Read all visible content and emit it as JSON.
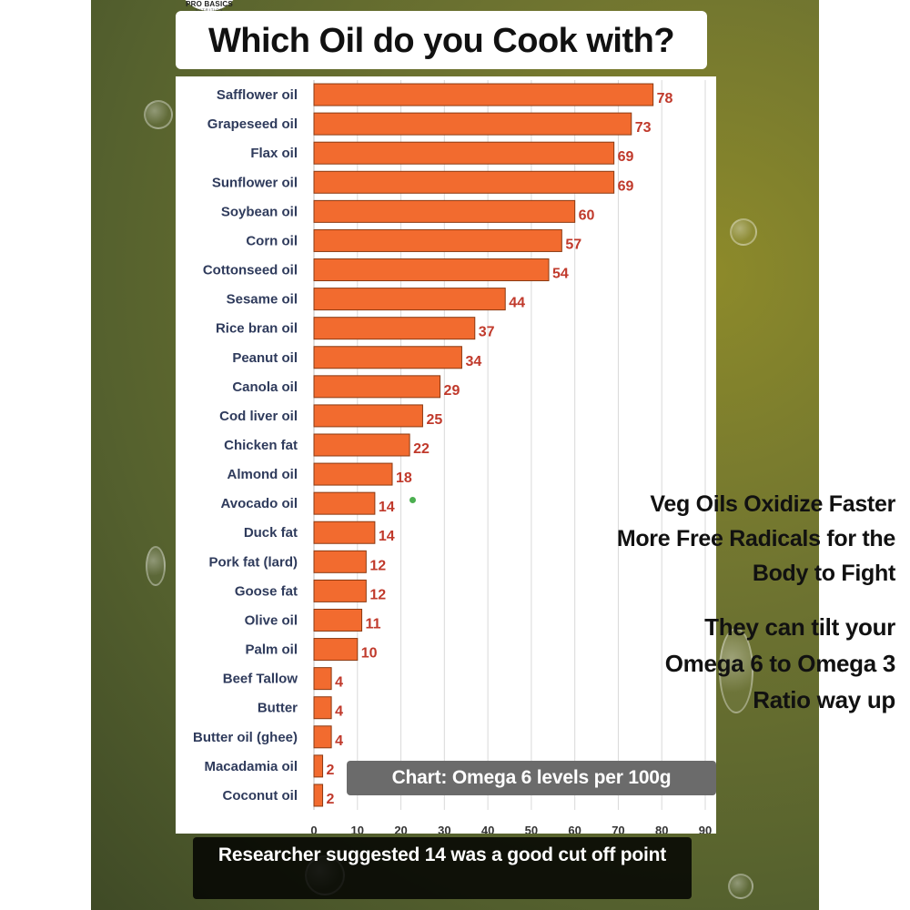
{
  "logo": {
    "main": "PRO BASICS",
    "sub": "NUTRITION"
  },
  "title": "Which Oil do you Cook with?",
  "annotations": {
    "oxidize": "Veg Oils Oxidize Faster More Free Radicals for the Body to Fight",
    "omega": "They can tilt your Omega 6 to Omega 3 Ratio way up",
    "chart_note": "Chart: Omega 6 levels per 100g"
  },
  "footer": "Researcher suggested 14 was a good cut off point",
  "colors": {
    "bar": "#f26b2f",
    "bar_outline": "#8a3a12",
    "value_text": "#c0392b",
    "category_text": "#2f3b5c",
    "grid": "#d9d9d9"
  },
  "chart_data": {
    "type": "bar",
    "orientation": "horizontal",
    "title": "",
    "xlabel": "",
    "ylabel": "",
    "categories": [
      "Safflower oil",
      "Grapeseed oil",
      "Flax oil",
      "Sunflower oil",
      "Soybean oil",
      "Corn oil",
      "Cottonseed oil",
      "Sesame oil",
      "Rice bran oil",
      "Peanut oil",
      "Canola oil",
      "Cod liver oil",
      "Chicken fat",
      "Almond oil",
      "Avocado oil",
      "Duck fat",
      "Pork fat (lard)",
      "Goose fat",
      "Olive oil",
      "Palm oil",
      "Beef Tallow",
      "Butter",
      "Butter oil (ghee)",
      "Macadamia oil",
      "Coconut oil"
    ],
    "values": [
      78,
      73,
      69,
      69,
      60,
      57,
      54,
      44,
      37,
      34,
      29,
      25,
      22,
      18,
      14,
      14,
      12,
      12,
      11,
      10,
      4,
      4,
      4,
      2,
      2
    ],
    "xlim": [
      0,
      90
    ],
    "ticks": [
      0,
      10,
      20,
      30,
      40,
      50,
      60,
      70,
      80,
      90
    ],
    "grid": true,
    "data_labels": true
  }
}
